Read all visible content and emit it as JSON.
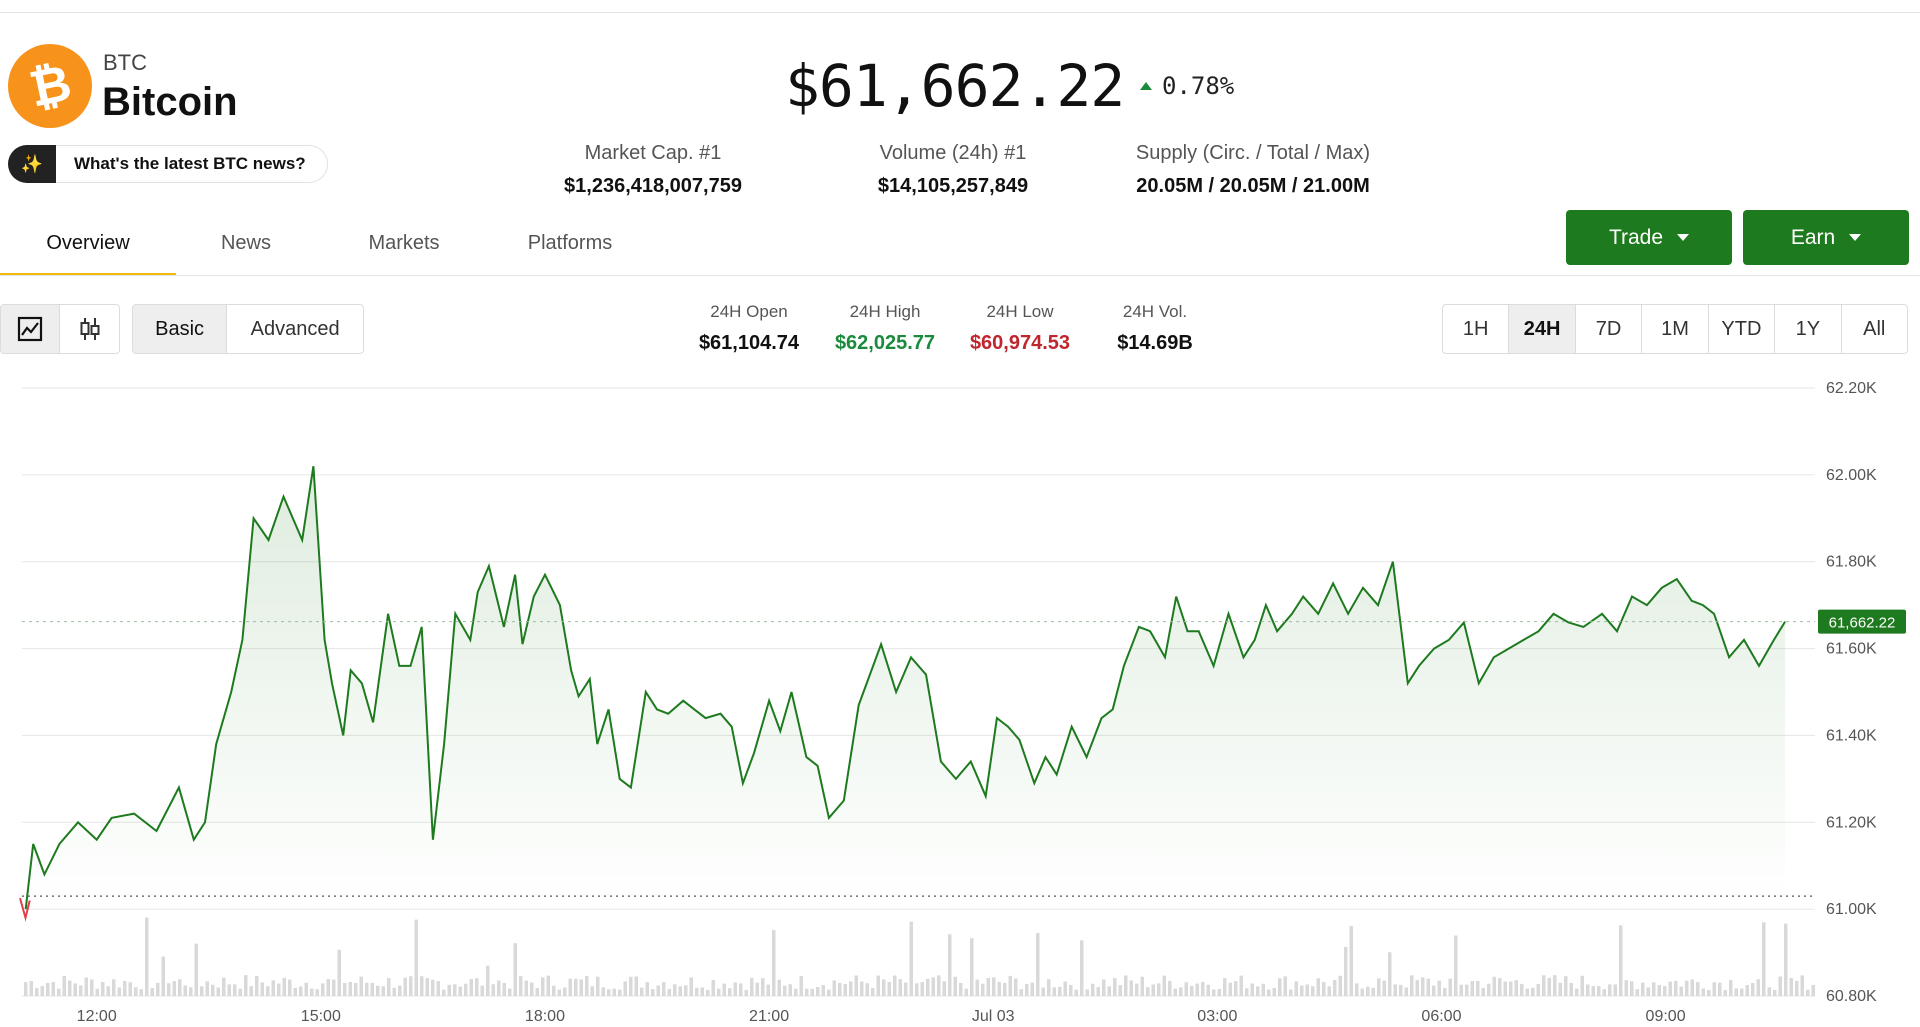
{
  "coin": {
    "symbol": "BTC",
    "name": "Bitcoin",
    "logo_icon": "bitcoin-icon",
    "logo_color": "#f7931a"
  },
  "news_prompt": {
    "icon": "sparkle-icon",
    "label": "What's the latest BTC news?"
  },
  "price": {
    "value": "$61,662.22",
    "change": "0.78%",
    "change_color": "#1a8a3c"
  },
  "stats": {
    "market_cap": {
      "label": "Market Cap. #1",
      "value": "$1,236,418,007,759"
    },
    "volume": {
      "label": "Volume (24h) #1",
      "value": "$14,105,257,849"
    },
    "supply": {
      "label": "Supply (Circ. / Total / Max)",
      "value": "20.05M / 20.05M / 21.00M"
    }
  },
  "tabs": [
    "Overview",
    "News",
    "Markets",
    "Platforms"
  ],
  "actions": {
    "trade": "Trade",
    "earn": "Earn",
    "color": "#1e7a1e"
  },
  "chart_controls": {
    "type_icons": [
      "line-chart-icon",
      "candlestick-icon"
    ],
    "modes": [
      "Basic",
      "Advanced"
    ],
    "ranges": [
      "1H",
      "24H",
      "7D",
      "1M",
      "YTD",
      "1Y",
      "All"
    ],
    "selected_range": "24H",
    "selected_mode": "Basic"
  },
  "ohlc": {
    "open": {
      "label": "24H Open",
      "value": "$61,104.74",
      "color": "#111111"
    },
    "high": {
      "label": "24H High",
      "value": "$62,025.77",
      "color": "#1a8a3c"
    },
    "low": {
      "label": "24H Low",
      "value": "$60,974.53",
      "color": "#c0262d"
    },
    "vol": {
      "label": "24H Vol.",
      "value": "$14.69B",
      "color": "#111111"
    }
  },
  "chart_data": {
    "type": "line",
    "title": "",
    "xlabel": "",
    "ylabel": "",
    "current_price_label": "61,662.22",
    "line_color": "#1e7a1e",
    "ylim": [
      60800,
      62200
    ],
    "y_ticks": [
      62200,
      62000,
      61800,
      61600,
      61400,
      61200,
      61000,
      60800
    ],
    "y_tick_labels": [
      "62.20K",
      "62.00K",
      "61.80K",
      "61.60K",
      "61.40K",
      "61.20K",
      "61.00K",
      "60.80K"
    ],
    "x_tick_labels": [
      "12:00",
      "15:00",
      "18:00",
      "21:00",
      "Jul 03",
      "03:00",
      "06:00",
      "09:00"
    ],
    "x_tick_hours": [
      12,
      15,
      18,
      21,
      24,
      27,
      30,
      33
    ],
    "xlim_hours": [
      11.0,
      35.0
    ],
    "grid": true,
    "open_price": 61030,
    "series": [
      {
        "x_hours": [
          11.05,
          11.15,
          11.3,
          11.5,
          11.75,
          12.0,
          12.2,
          12.5,
          12.8,
          13.1,
          13.3,
          13.45,
          13.6,
          13.8,
          13.95,
          14.1,
          14.3,
          14.5,
          14.75,
          14.9,
          15.05,
          15.15,
          15.3,
          15.4,
          15.55,
          15.7,
          15.9,
          16.05,
          16.2,
          16.35,
          16.5,
          16.65,
          16.8,
          17.0,
          17.1,
          17.25,
          17.45,
          17.6,
          17.7,
          17.85,
          18.0,
          18.2,
          18.35,
          18.45,
          18.6,
          18.7,
          18.85,
          19.0,
          19.15,
          19.35,
          19.5,
          19.65,
          19.85,
          20.0,
          20.15,
          20.35,
          20.5,
          20.65,
          20.8,
          21.0,
          21.15,
          21.3,
          21.5,
          21.65,
          21.8,
          22.0,
          22.2,
          22.35,
          22.5,
          22.7,
          22.9,
          23.1,
          23.3,
          23.5,
          23.7,
          23.9,
          24.05,
          24.2,
          24.35,
          24.55,
          24.7,
          24.85,
          25.05,
          25.25,
          25.45,
          25.6,
          25.75,
          25.95,
          26.1,
          26.3,
          26.45,
          26.6,
          26.75,
          26.95,
          27.15,
          27.35,
          27.5,
          27.65,
          27.8,
          28.0,
          28.15,
          28.35,
          28.55,
          28.75,
          28.95,
          29.15,
          29.35,
          29.55,
          29.7,
          29.9,
          30.1,
          30.3,
          30.5,
          30.7,
          30.9,
          31.1,
          31.3,
          31.5,
          31.7,
          31.9,
          32.15,
          32.35,
          32.55,
          32.75,
          32.95,
          33.15,
          33.35,
          33.5,
          33.65,
          33.85,
          34.05,
          34.25,
          34.45,
          34.6
        ],
        "values": [
          61000,
          61150,
          61080,
          61150,
          61200,
          61160,
          61210,
          61220,
          61180,
          61280,
          61160,
          61200,
          61380,
          61500,
          61620,
          61900,
          61850,
          61950,
          61850,
          62020,
          61620,
          61520,
          61400,
          61550,
          61520,
          61430,
          61680,
          61560,
          61560,
          61650,
          61160,
          61380,
          61680,
          61620,
          61730,
          61790,
          61650,
          61770,
          61610,
          61720,
          61770,
          61700,
          61550,
          61490,
          61530,
          61380,
          61460,
          61300,
          61280,
          61500,
          61460,
          61450,
          61480,
          61460,
          61440,
          61450,
          61420,
          61290,
          61360,
          61480,
          61410,
          61500,
          61350,
          61330,
          61210,
          61250,
          61470,
          61540,
          61610,
          61500,
          61580,
          61540,
          61340,
          61300,
          61340,
          61260,
          61440,
          61420,
          61390,
          61290,
          61350,
          61310,
          61420,
          61350,
          61440,
          61460,
          61560,
          61650,
          61640,
          61580,
          61720,
          61640,
          61640,
          61560,
          61680,
          61580,
          61620,
          61700,
          61640,
          61680,
          61720,
          61680,
          61750,
          61680,
          61740,
          61700,
          61800,
          61520,
          61560,
          61600,
          61620,
          61660,
          61520,
          61580,
          61600,
          61620,
          61640,
          61680,
          61660,
          61650,
          61680,
          61640,
          61720,
          61700,
          61740,
          61760,
          61710,
          61700,
          61680,
          61580,
          61620,
          61560,
          61620,
          61662
        ]
      }
    ],
    "volume_bars": true
  }
}
